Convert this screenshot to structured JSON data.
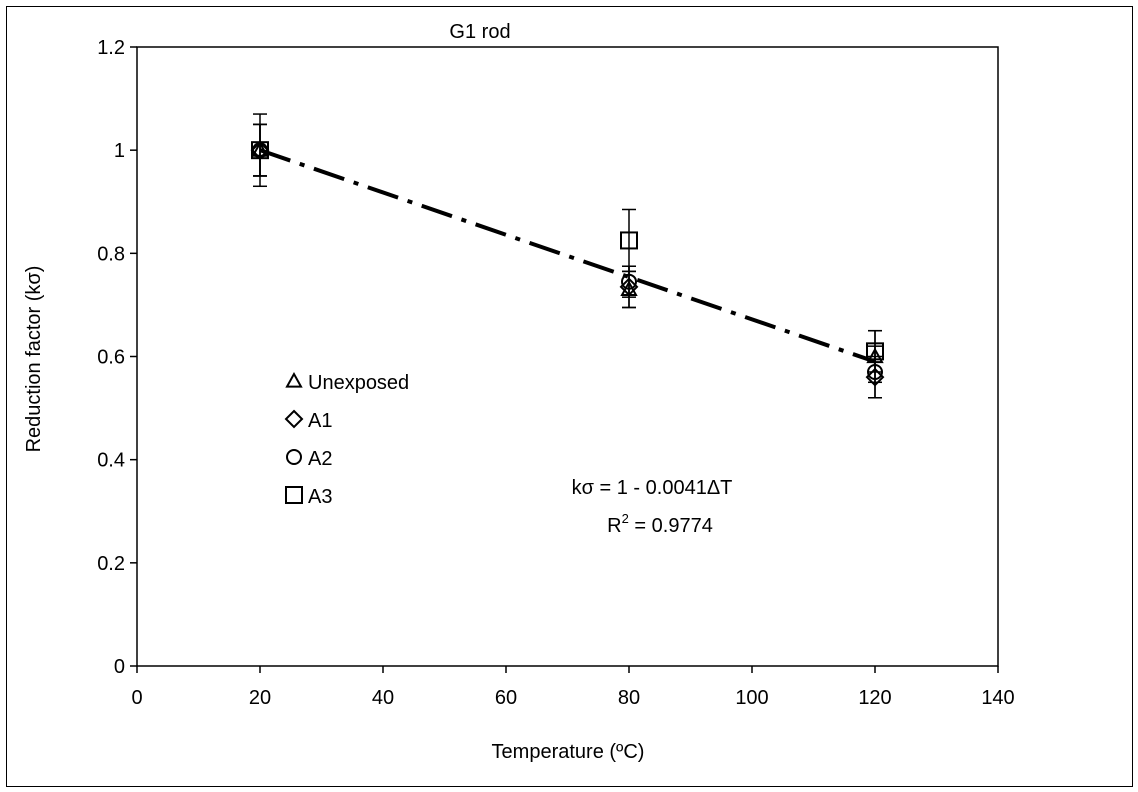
{
  "chart_data": {
    "type": "scatter",
    "title": "G1 rod",
    "xlabel": "Temperature (ºC)",
    "ylabel": "Reduction factor (kσ)",
    "xlim": [
      0,
      140
    ],
    "ylim": [
      0,
      1.2
    ],
    "x_ticks": [
      0,
      20,
      40,
      60,
      80,
      100,
      120,
      140
    ],
    "y_ticks": [
      0,
      0.2,
      0.4,
      0.6,
      0.8,
      1,
      1.2
    ],
    "x_tick_labels": [
      "0",
      "20",
      "40",
      "60",
      "80",
      "100",
      "120",
      "140"
    ],
    "y_tick_labels": [
      "0",
      "0.2",
      "0.4",
      "0.6",
      "0.8",
      "1",
      "1.2"
    ],
    "grid": false,
    "legend_position": "left-middle",
    "series": [
      {
        "name": "Unexposed",
        "marker": "triangle",
        "x": [
          20,
          80,
          120
        ],
        "y": [
          1.0,
          0.73,
          0.6
        ],
        "err": [
          0.07,
          0.035,
          0.05
        ]
      },
      {
        "name": "A1",
        "marker": "diamond",
        "x": [
          20,
          80,
          120
        ],
        "y": [
          1.0,
          0.735,
          0.56
        ],
        "err": [
          0.05,
          0.04,
          0.04
        ]
      },
      {
        "name": "A2",
        "marker": "circle",
        "x": [
          20,
          80,
          120
        ],
        "y": [
          1.0,
          0.745,
          0.57
        ],
        "err": [
          0.05,
          0.03,
          0.05
        ]
      },
      {
        "name": "A3",
        "marker": "square",
        "x": [
          20,
          80,
          120
        ],
        "y": [
          1.0,
          0.825,
          0.61
        ],
        "err": [
          0.05,
          0.06,
          0.04
        ]
      }
    ],
    "trendline": {
      "style": "dash-dot",
      "x": [
        20,
        120
      ],
      "y": [
        1.0,
        0.59
      ]
    },
    "annotations": {
      "equation": "kσ = 1 - 0.0041ΔT",
      "r2_prefix": "R",
      "r2_sup": "2",
      "r2_suffix": " = 0.9774"
    }
  }
}
